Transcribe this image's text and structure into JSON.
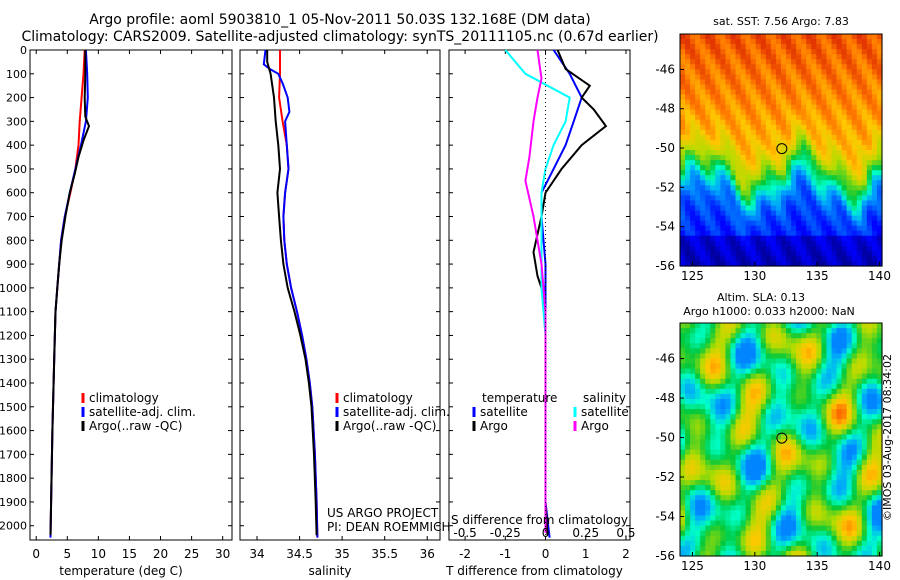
{
  "header": {
    "title": "Argo profile: aoml 5903810_1 05-Nov-2011 50.03S 132.168E (DM data)",
    "subtitle": "Climatology: CARS2009. Satellite-adjusted climatology: synTS_20111105.nc (0.67d earlier)"
  },
  "colors": {
    "red": "#ff0000",
    "blue": "#0000ff",
    "black": "#000000",
    "cyan": "#00ffff",
    "magenta": "#ff00ff"
  },
  "depth_ticks": [
    0,
    100,
    200,
    300,
    400,
    500,
    600,
    700,
    800,
    900,
    1000,
    1100,
    1200,
    1300,
    1400,
    1500,
    1600,
    1700,
    1800,
    1900,
    2000
  ],
  "chart_data": [
    {
      "type": "line",
      "xlabel": "temperature (deg C)",
      "xlim": [
        -1,
        31.5
      ],
      "ylim": [
        0,
        2060
      ],
      "xticks": [
        0,
        5,
        10,
        15,
        20,
        25,
        30
      ],
      "legend": [
        "climatology",
        "satellite-adj. clim.",
        "Argo(..raw -QC)"
      ],
      "series": [
        {
          "name": "climatology",
          "color": "red",
          "points": [
            [
              7.8,
              0
            ],
            [
              7.6,
              100
            ],
            [
              7.3,
              200
            ],
            [
              7.0,
              300
            ],
            [
              6.8,
              400
            ],
            [
              6.3,
              500
            ],
            [
              5.5,
              600
            ],
            [
              4.6,
              700
            ],
            [
              4.0,
              800
            ],
            [
              3.7,
              900
            ],
            [
              3.4,
              1000
            ],
            [
              3.1,
              1100
            ],
            [
              2.9,
              1300
            ],
            [
              2.6,
              1600
            ],
            [
              2.4,
              1900
            ],
            [
              2.3,
              2050
            ]
          ]
        },
        {
          "name": "satellite-adj. clim.",
          "color": "blue",
          "points": [
            [
              8.0,
              0
            ],
            [
              8.2,
              100
            ],
            [
              8.3,
              200
            ],
            [
              8.0,
              300
            ],
            [
              7.2,
              400
            ],
            [
              6.3,
              500
            ],
            [
              5.4,
              600
            ],
            [
              4.6,
              700
            ],
            [
              4.0,
              800
            ],
            [
              3.7,
              900
            ],
            [
              3.4,
              1000
            ],
            [
              3.1,
              1100
            ],
            [
              2.9,
              1300
            ],
            [
              2.6,
              1600
            ],
            [
              2.4,
              1900
            ],
            [
              2.3,
              2050
            ]
          ]
        },
        {
          "name": "Argo(..raw -QC)",
          "color": "black",
          "points": [
            [
              7.9,
              0
            ],
            [
              7.9,
              100
            ],
            [
              7.8,
              200
            ],
            [
              7.9,
              280
            ],
            [
              8.5,
              320
            ],
            [
              7.6,
              380
            ],
            [
              6.8,
              450
            ],
            [
              6.2,
              520
            ],
            [
              5.4,
              600
            ],
            [
              4.7,
              700
            ],
            [
              4.1,
              800
            ],
            [
              3.7,
              900
            ],
            [
              3.4,
              1000
            ],
            [
              3.1,
              1100
            ],
            [
              2.9,
              1300
            ],
            [
              2.6,
              1600
            ],
            [
              2.4,
              1900
            ],
            [
              2.3,
              2040
            ]
          ]
        }
      ]
    },
    {
      "type": "line",
      "xlabel": "salinity",
      "xlim": [
        33.8,
        36.15
      ],
      "ylim": [
        0,
        2060
      ],
      "xticks": [
        34,
        34.5,
        35,
        35.5,
        36
      ],
      "legend": [
        "climatology",
        "satellite-adj. clim.",
        "Argo(..raw -QC)"
      ],
      "annotation": [
        "US ARGO PROJECT",
        "PI: DEAN ROEMMICH"
      ],
      "series": [
        {
          "name": "climatology",
          "color": "red",
          "points": [
            [
              34.27,
              0
            ],
            [
              34.27,
              100
            ],
            [
              34.26,
              200
            ],
            [
              34.3,
              300
            ],
            [
              34.35,
              400
            ],
            [
              34.37,
              500
            ],
            [
              34.33,
              600
            ],
            [
              34.31,
              700
            ],
            [
              34.32,
              800
            ],
            [
              34.35,
              900
            ],
            [
              34.4,
              1000
            ],
            [
              34.47,
              1100
            ],
            [
              34.53,
              1200
            ],
            [
              34.58,
              1300
            ],
            [
              34.62,
              1400
            ],
            [
              34.65,
              1500
            ],
            [
              34.68,
              1700
            ],
            [
              34.7,
              1900
            ],
            [
              34.71,
              2050
            ]
          ]
        },
        {
          "name": "satellite-adj. clim.",
          "color": "blue",
          "points": [
            [
              34.1,
              0
            ],
            [
              34.08,
              60
            ],
            [
              34.15,
              80
            ],
            [
              34.25,
              100
            ],
            [
              34.3,
              140
            ],
            [
              34.36,
              200
            ],
            [
              34.38,
              260
            ],
            [
              34.33,
              300
            ],
            [
              34.35,
              400
            ],
            [
              34.37,
              500
            ],
            [
              34.33,
              600
            ],
            [
              34.31,
              700
            ],
            [
              34.32,
              800
            ],
            [
              34.35,
              900
            ],
            [
              34.4,
              1000
            ],
            [
              34.47,
              1100
            ],
            [
              34.53,
              1200
            ],
            [
              34.58,
              1300
            ],
            [
              34.62,
              1400
            ],
            [
              34.65,
              1500
            ],
            [
              34.68,
              1700
            ],
            [
              34.7,
              1900
            ],
            [
              34.71,
              2050
            ]
          ]
        },
        {
          "name": "Argo(..raw -QC)",
          "color": "black",
          "points": [
            [
              34.12,
              0
            ],
            [
              34.12,
              50
            ],
            [
              34.16,
              100
            ],
            [
              34.2,
              200
            ],
            [
              34.22,
              300
            ],
            [
              34.25,
              400
            ],
            [
              34.27,
              500
            ],
            [
              34.24,
              600
            ],
            [
              34.26,
              700
            ],
            [
              34.28,
              800
            ],
            [
              34.31,
              900
            ],
            [
              34.36,
              1000
            ],
            [
              34.44,
              1100
            ],
            [
              34.51,
              1200
            ],
            [
              34.57,
              1300
            ],
            [
              34.61,
              1400
            ],
            [
              34.64,
              1500
            ],
            [
              34.67,
              1700
            ],
            [
              34.69,
              1900
            ],
            [
              34.7,
              2040
            ]
          ]
        }
      ]
    },
    {
      "type": "line",
      "xlabel": "T difference from climatology",
      "xlabel_top": "S difference from climatology",
      "xlim": [
        -2.4,
        2.1
      ],
      "ylim": [
        0,
        2060
      ],
      "xticks": [
        -2,
        -1,
        0,
        1,
        2
      ],
      "xticks_s": [
        -0.5,
        -0.25,
        0,
        0.25,
        0.5
      ],
      "legend_headers": [
        "temperature",
        "salinity"
      ],
      "legend": [
        "satellite",
        "Argo",
        "satellite",
        "Argo"
      ],
      "series": [
        {
          "name": "satellite",
          "group": "temperature",
          "color": "blue",
          "points": [
            [
              0.2,
              0
            ],
            [
              0.6,
              100
            ],
            [
              0.9,
              200
            ],
            [
              0.7,
              300
            ],
            [
              0.5,
              400
            ],
            [
              0.2,
              500
            ],
            [
              -0.1,
              600
            ],
            [
              -0.1,
              700
            ],
            [
              0,
              900
            ],
            [
              0,
              1100
            ],
            [
              0,
              1500
            ],
            [
              0,
              1900
            ],
            [
              0.1,
              2050
            ]
          ]
        },
        {
          "name": "Argo",
          "group": "temperature",
          "color": "black",
          "points": [
            [
              0.3,
              0
            ],
            [
              0.5,
              80
            ],
            [
              1.1,
              150
            ],
            [
              0.9,
              200
            ],
            [
              1.2,
              250
            ],
            [
              1.5,
              320
            ],
            [
              0.9,
              400
            ],
            [
              0.4,
              500
            ],
            [
              0.0,
              600
            ],
            [
              -0.1,
              700
            ],
            [
              -0.3,
              850
            ],
            [
              -0.2,
              950
            ],
            [
              -0.1,
              1000
            ],
            [
              0,
              1100
            ],
            [
              0,
              1500
            ],
            [
              0,
              1900
            ],
            [
              0.05,
              2040
            ]
          ]
        },
        {
          "name": "satellite",
          "group": "salinity",
          "color": "cyan",
          "points": [
            [
              -1.0,
              0
            ],
            [
              -0.5,
              100
            ],
            [
              0.6,
              200
            ],
            [
              0.5,
              300
            ],
            [
              0.2,
              400
            ],
            [
              0,
              500
            ],
            [
              -0.1,
              600
            ],
            [
              -0.1,
              800
            ],
            [
              -0.1,
              1000
            ],
            [
              0,
              1200
            ],
            [
              0,
              1500
            ],
            [
              0,
              1800
            ],
            [
              0,
              2000
            ]
          ]
        },
        {
          "name": "Argo",
          "group": "salinity",
          "color": "magenta",
          "points": [
            [
              -0.2,
              0
            ],
            [
              -0.1,
              120
            ],
            [
              -0.2,
              200
            ],
            [
              -0.3,
              300
            ],
            [
              -0.4,
              450
            ],
            [
              -0.5,
              550
            ],
            [
              -0.3,
              700
            ],
            [
              -0.2,
              800
            ],
            [
              -0.1,
              900
            ],
            [
              0,
              1100
            ],
            [
              0,
              1500
            ],
            [
              0,
              1900
            ],
            [
              0,
              2030
            ]
          ]
        }
      ]
    },
    {
      "type": "heatmap",
      "title": "sat. SST: 7.56 Argo: 7.83",
      "xlim": [
        124,
        140.2
      ],
      "ylim": [
        -56,
        -44.2
      ],
      "xticks": [
        125,
        130,
        135,
        140
      ],
      "yticks": [
        -46,
        -48,
        -50,
        -52,
        -54,
        -56
      ],
      "marker": [
        132.168,
        -50.03
      ]
    },
    {
      "type": "heatmap",
      "title": "Altim. SLA: 0.13",
      "title2": "Argo h1000: 0.033 h2000: NaN",
      "xlim": [
        124,
        140.2
      ],
      "ylim": [
        -56,
        -44.2
      ],
      "xticks": [
        125,
        130,
        135,
        140
      ],
      "yticks": [
        -46,
        -48,
        -50,
        -52,
        -54,
        -56
      ],
      "marker": [
        132.168,
        -50.03
      ],
      "stamp": "©IMOS 03-Aug-2017 08:34:02"
    }
  ]
}
